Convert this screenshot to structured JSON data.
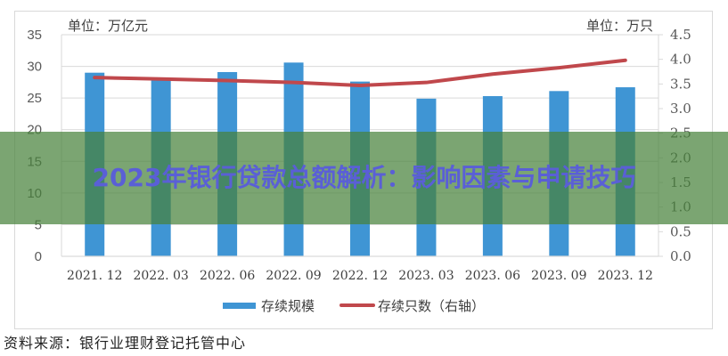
{
  "chart_data": {
    "type": "bar+line",
    "title": "",
    "categories": [
      "2021.12",
      "2022.03",
      "2022.06",
      "2022.09",
      "2022.12",
      "2023.03",
      "2023.06",
      "2023.09",
      "2023.12"
    ],
    "series": [
      {
        "name": "存续规模",
        "type": "bar",
        "axis": "left",
        "color": "#3f95d4",
        "values": [
          29.0,
          28.2,
          29.1,
          30.6,
          27.6,
          24.9,
          25.3,
          26.1,
          26.7
        ]
      },
      {
        "name": "存续只数（右轴）",
        "type": "line",
        "axis": "right",
        "color": "#c0484c",
        "values": [
          3.63,
          3.6,
          3.57,
          3.53,
          3.47,
          3.53,
          3.7,
          3.83,
          3.98
        ]
      }
    ],
    "left_axis": {
      "unit_label": "单位：万亿元",
      "ylim": [
        0,
        35
      ],
      "ticks": [
        "0",
        "5",
        "10",
        "15",
        "20",
        "25",
        "30",
        "35"
      ]
    },
    "right_axis": {
      "unit_label": "单位：万只",
      "ylim": [
        0,
        4.5
      ],
      "ticks": [
        "0.0",
        "0.5",
        "1.0",
        "1.5",
        "2.0",
        "2.5",
        "3.0",
        "3.5",
        "4.0",
        "4.5"
      ]
    },
    "grid": true,
    "legend_position": "bottom"
  },
  "chart": {
    "unit_left": "单位：万亿元",
    "unit_right": "单位：万只",
    "legend": {
      "bar_label": "存续规模",
      "line_label": "存续只数（右轴）"
    },
    "source": "资料来源：银行业理财登记托管中心"
  },
  "banner": {
    "title": "2023年银行贷款总额解析：影响因素与申请技巧"
  }
}
